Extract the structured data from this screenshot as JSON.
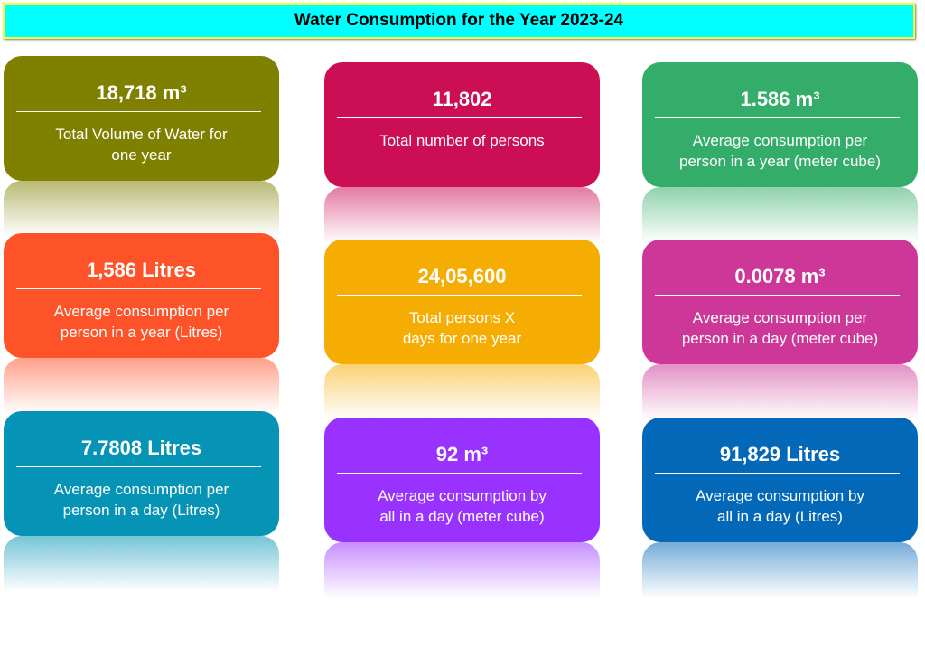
{
  "title": "Water Consumption for the Year 2023-24",
  "cards": [
    {
      "value": "18,718 m³",
      "label_line1": "Total Volume of Water for",
      "label_line2": "one year",
      "color": "#808000"
    },
    {
      "value": "11,802",
      "label_line1": "Total number of persons",
      "label_line2": "",
      "color": "#cc0e55"
    },
    {
      "value": "1.586 m³",
      "label_line1": "Average consumption per",
      "label_line2": "person in a year (meter cube)",
      "color": "#33ad69"
    },
    {
      "value": "1,586 Litres",
      "label_line1": "Average consumption per",
      "label_line2": "person in a year (Litres)",
      "color": "#fe5328"
    },
    {
      "value": "24,05,600",
      "label_line1": "Total persons X",
      "label_line2": "days for one year",
      "color": "#f5ad03"
    },
    {
      "value": "0.0078 m³",
      "label_line1": "Average consumption per",
      "label_line2": "person in a day (meter cube)",
      "color": "#cc3798"
    },
    {
      "value": "7.7808 Litres",
      "label_line1": "Average consumption per",
      "label_line2": "person in a day (Litres)",
      "color": "#0694b6"
    },
    {
      "value": "92 m³",
      "label_line1": "Average consumption by",
      "label_line2": "all in a day (meter cube)",
      "color": "#9932fe"
    },
    {
      "value": "91,829 Litres",
      "label_line1": "Average consumption by",
      "label_line2": "all in a day (Litres)",
      "color": "#0468b9"
    }
  ]
}
